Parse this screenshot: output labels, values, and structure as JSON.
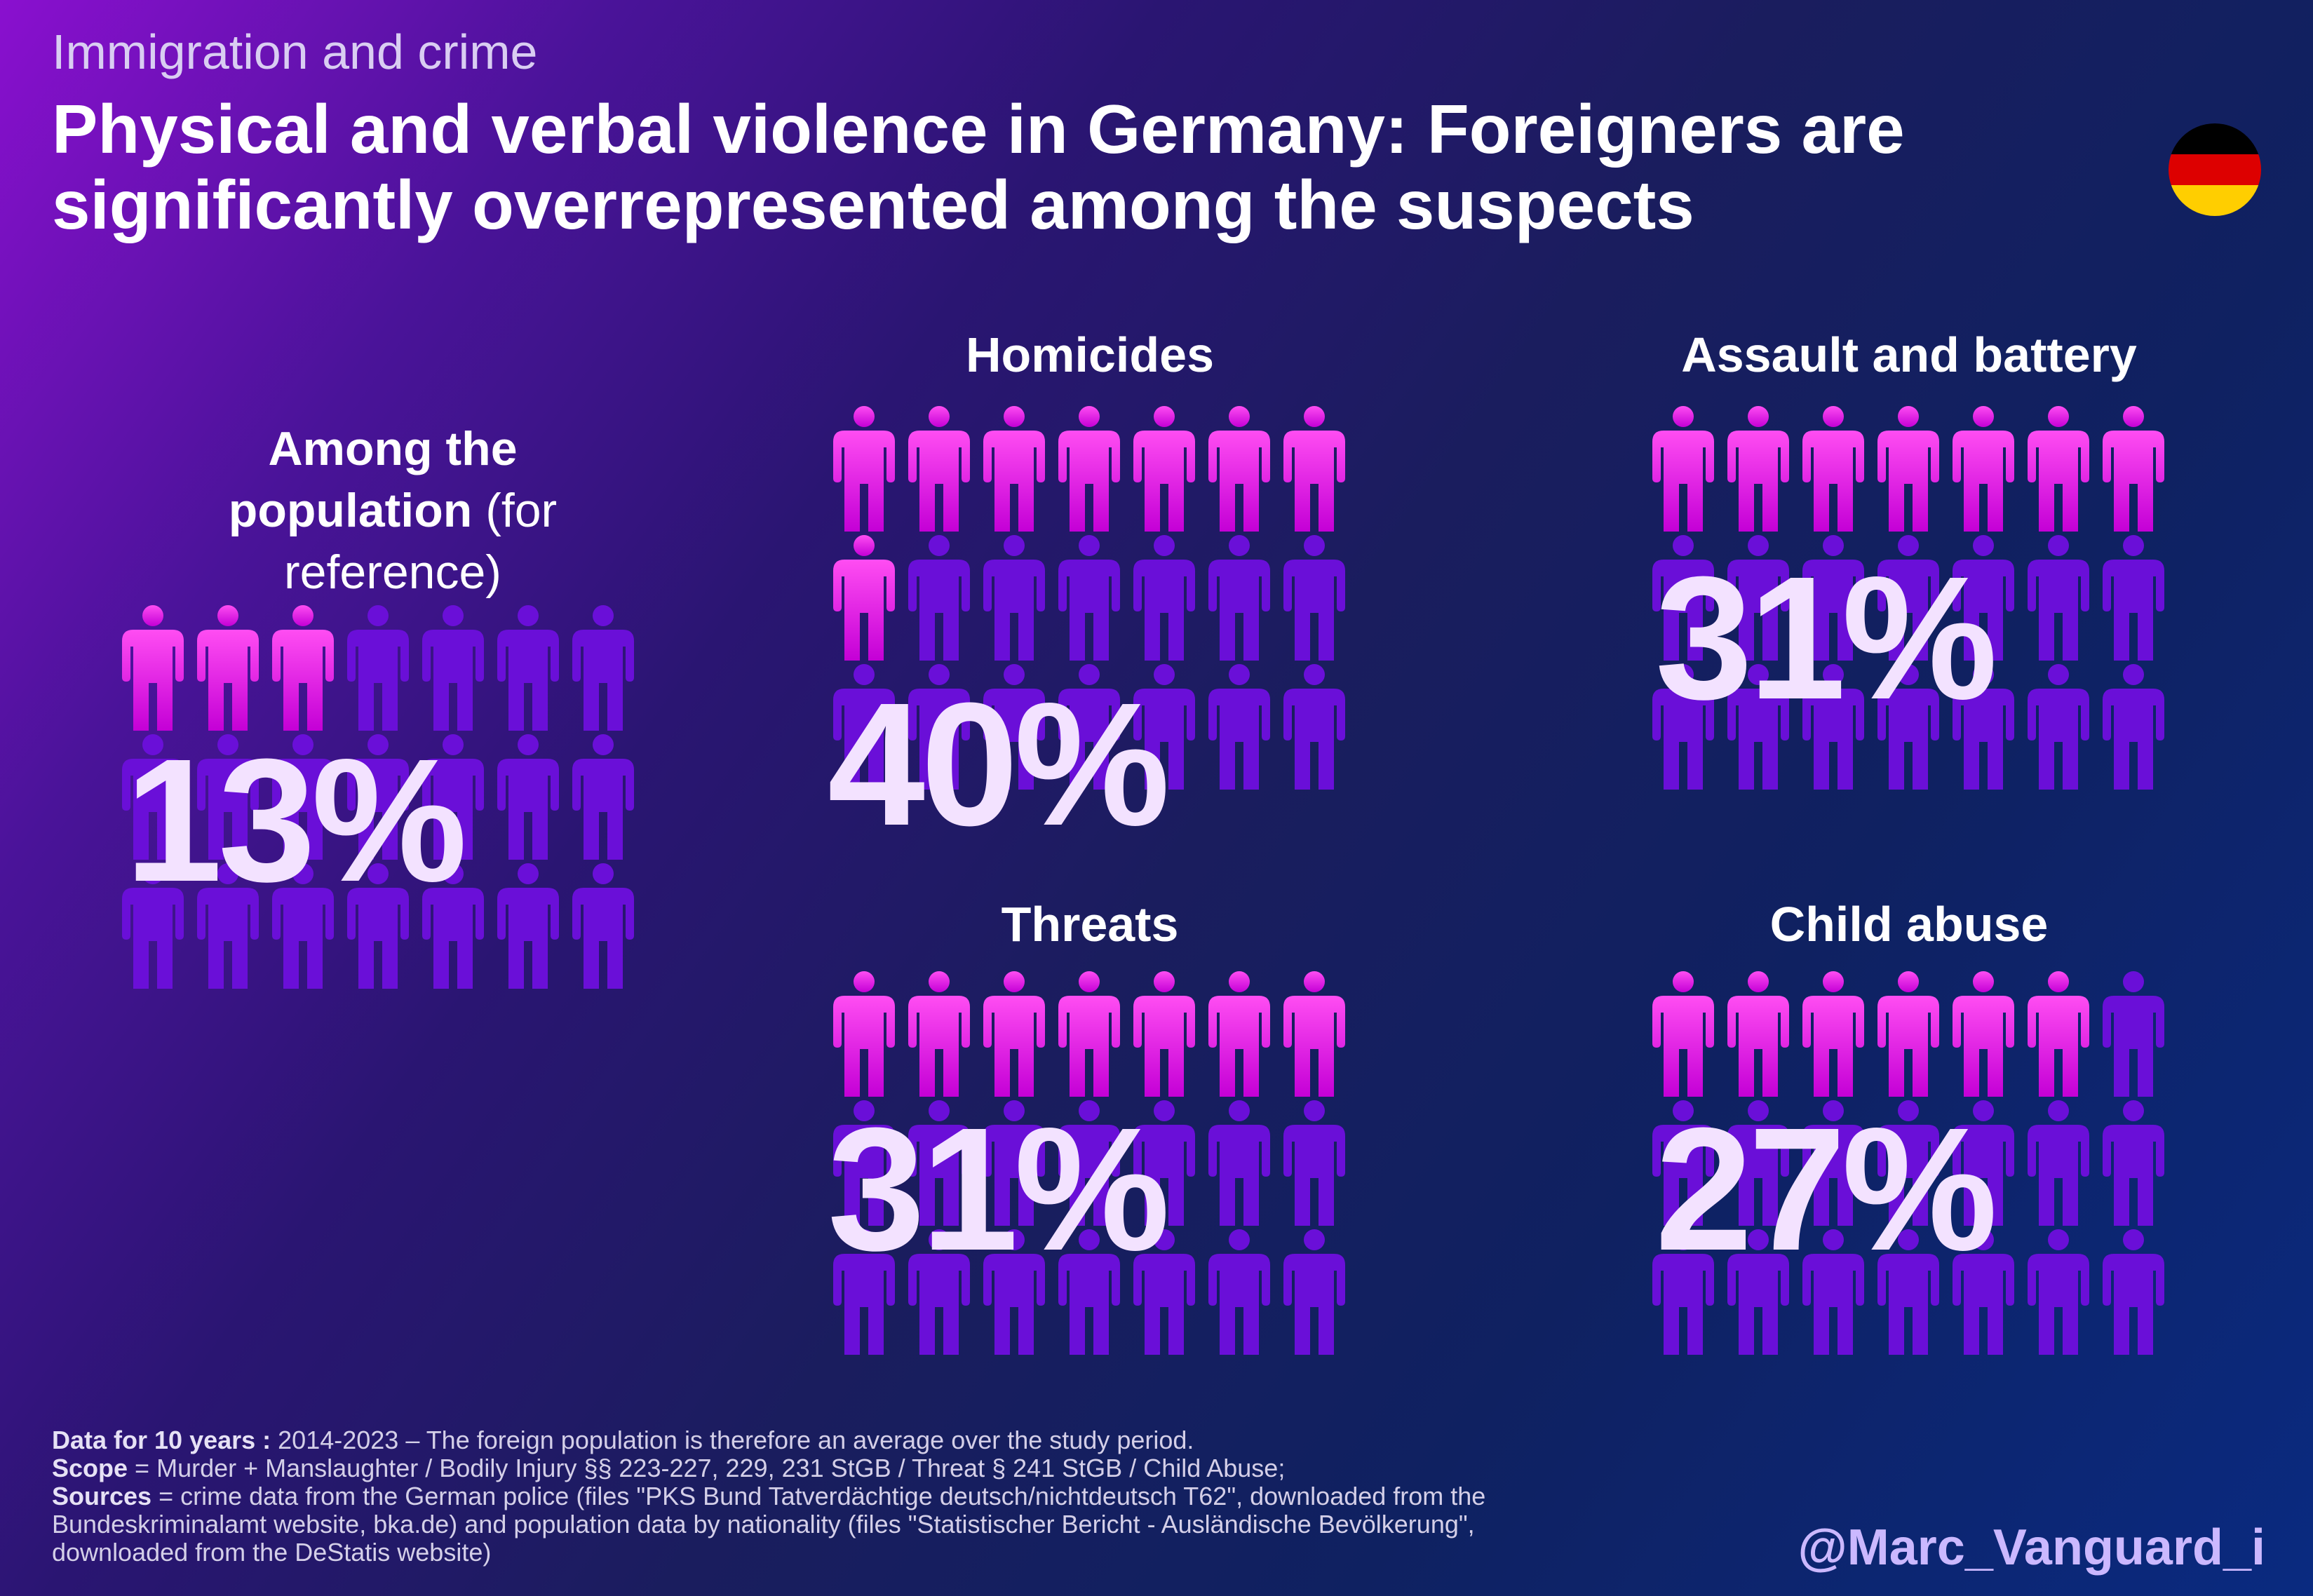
{
  "kicker": "Immigration and crime",
  "headline": {
    "line1": "Physical and verbal violence in Germany: Foreigners are",
    "line2": "significantly overrepresented among the suspects"
  },
  "colors": {
    "highlight_top": "#ff4df2",
    "highlight_bottom": "#c400d6",
    "base": "#6a0fd8",
    "big_number": "#f3e2ff",
    "flag": [
      "#000000",
      "#dd0000",
      "#ffce00"
    ]
  },
  "icons": {
    "person": "person-icon",
    "flag": "germany-flag-icon"
  },
  "chart_data": [
    {
      "type": "pictogram",
      "title_bold": "Among the population",
      "title_light_1": "(for",
      "title_light_2": "reference)",
      "value_label": "13%",
      "value": 13,
      "highlighted_icons": 3,
      "total_icons": 21
    },
    {
      "type": "pictogram",
      "title": "Homicides",
      "value_label": "40%",
      "value": 40,
      "highlighted_icons": 8,
      "total_icons": 21
    },
    {
      "type": "pictogram",
      "title": "Assault and battery",
      "value_label": "31%",
      "value": 31,
      "highlighted_icons": 7,
      "total_icons": 21
    },
    {
      "type": "pictogram",
      "title": "Threats",
      "value_label": "31%",
      "value": 31,
      "highlighted_icons": 7,
      "total_icons": 21
    },
    {
      "type": "pictogram",
      "title": "Child abuse",
      "value_label": "27%",
      "value": 27,
      "highlighted_icons": 6,
      "total_icons": 21
    }
  ],
  "footnote": {
    "data_label": "Data for 10 years :",
    "data_text": " 2014-2023 – The foreign population is therefore an average over the study period.",
    "scope_label": "Scope",
    "scope_text": " = Murder + Manslaughter / Bodily Injury §§ 223-227, 229, 231 StGB / Threat § 241 StGB / Child Abuse;",
    "sources_label": "Sources",
    "sources_text_1": " = crime data from the German police (files \"PKS Bund Tatverdächtige deutsch/nichtdeutsch T62\", downloaded from the",
    "sources_text_2": "Bundeskriminalamt website, bka.de) and population data by nationality (files \"Statistischer Bericht - Ausländische Bevölkerung\",",
    "sources_text_3": "downloaded from the DeStatis website)"
  },
  "handle": "@Marc_Vanguard_i"
}
